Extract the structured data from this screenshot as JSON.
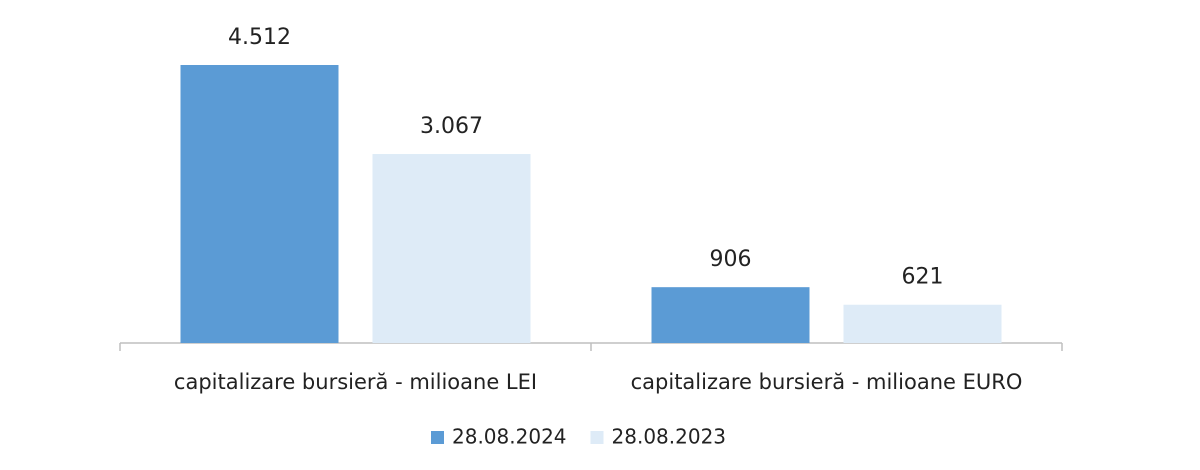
{
  "chart_data": {
    "type": "bar",
    "categories": [
      "capitalizare bursieră - milioane LEI",
      "capitalizare bursieră - milioane EURO"
    ],
    "series": [
      {
        "name": "28.08.2024",
        "color": "#5b9bd5",
        "values": [
          4512,
          906
        ],
        "value_labels": [
          "4.512",
          "906"
        ]
      },
      {
        "name": "28.08.2023",
        "color": "#deebf7",
        "values": [
          3067,
          621
        ],
        "value_labels": [
          "3.067",
          "621"
        ]
      }
    ],
    "legend": "bottom"
  }
}
